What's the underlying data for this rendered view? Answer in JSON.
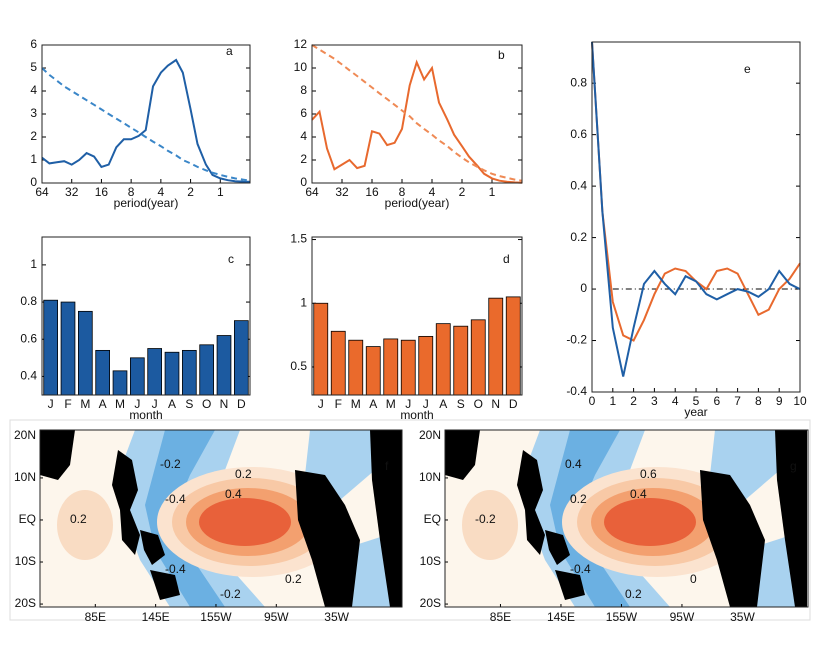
{
  "chart_data": [
    {
      "type": "line",
      "label": "a",
      "xlabel": "period(year)",
      "log_x": true,
      "x": [
        64,
        53.8,
        45.3,
        38.1,
        32,
        26.9,
        22.6,
        19,
        16,
        13.5,
        11.3,
        9.5,
        8,
        6.7,
        5.7,
        4.8,
        4,
        3.4,
        2.8,
        2.4,
        2,
        1.7,
        1.4,
        1.2,
        1,
        0.84,
        0.71,
        0.59,
        0.5
      ],
      "xlim": [
        64,
        0.5
      ],
      "xticks": [
        64,
        32,
        16,
        8,
        4,
        2,
        1
      ],
      "ylim": [
        0,
        6
      ],
      "yticks": [
        0,
        1,
        2,
        3,
        4,
        5,
        6
      ],
      "series": [
        {
          "color": "#1f5fa6",
          "dash": false,
          "values": [
            1.1,
            0.85,
            0.9,
            0.95,
            0.8,
            1.0,
            1.3,
            1.15,
            0.7,
            0.8,
            1.55,
            1.9,
            1.9,
            2.05,
            2.3,
            4.2,
            4.8,
            5.1,
            5.35,
            4.8,
            3.2,
            1.7,
            0.8,
            0.35,
            0.2,
            0.12,
            0.08,
            0.06,
            0.05
          ]
        },
        {
          "color": "#3a86c8",
          "dash": true,
          "values": [
            5,
            4.7,
            4.45,
            4.2,
            4,
            3.8,
            3.6,
            3.4,
            3.2,
            3.0,
            2.8,
            2.6,
            2.4,
            2.2,
            2.0,
            1.8,
            1.6,
            1.4,
            1.2,
            1.0,
            0.85,
            0.7,
            0.55,
            0.45,
            0.35,
            0.27,
            0.2,
            0.15,
            0.1
          ]
        }
      ]
    },
    {
      "type": "line",
      "label": "b",
      "xlabel": "period(year)",
      "log_x": true,
      "x": [
        64,
        53.8,
        45.3,
        38.1,
        32,
        26.9,
        22.6,
        19,
        16,
        13.5,
        11.3,
        9.5,
        8,
        6.7,
        5.7,
        4.8,
        4,
        3.4,
        2.8,
        2.4,
        2,
        1.7,
        1.4,
        1.2,
        1,
        0.84,
        0.71,
        0.59,
        0.5
      ],
      "xlim": [
        64,
        0.5
      ],
      "xticks": [
        64,
        32,
        16,
        8,
        4,
        2,
        1
      ],
      "ylim": [
        0,
        12
      ],
      "yticks": [
        0,
        2,
        4,
        6,
        8,
        10,
        12
      ],
      "series": [
        {
          "color": "#e8692e",
          "dash": false,
          "values": [
            5.5,
            6.2,
            3,
            1.2,
            1.6,
            2.0,
            1.3,
            1.5,
            4.5,
            4.3,
            3.3,
            3.5,
            4.7,
            8.5,
            10.5,
            9,
            10,
            7,
            5.5,
            4.2,
            3.2,
            2.3,
            1.5,
            0.8,
            0.4,
            0.2,
            0.1,
            0.05,
            0.03
          ]
        },
        {
          "color": "#ef8a55",
          "dash": true,
          "values": [
            12,
            11.6,
            11.2,
            10.8,
            10.3,
            9.8,
            9.3,
            8.8,
            8.3,
            7.8,
            7.3,
            6.8,
            6.3,
            5.8,
            5.2,
            4.7,
            4.2,
            3.7,
            3.2,
            2.7,
            2.2,
            1.8,
            1.4,
            1.1,
            0.8,
            0.6,
            0.45,
            0.3,
            0.2
          ]
        }
      ]
    },
    {
      "type": "bar",
      "label": "c",
      "xlabel": "month",
      "color": "#1c5aa0",
      "categories": [
        "J",
        "F",
        "M",
        "A",
        "M",
        "J",
        "J",
        "A",
        "S",
        "O",
        "N",
        "D"
      ],
      "values": [
        0.81,
        0.8,
        0.75,
        0.54,
        0.43,
        0.5,
        0.55,
        0.53,
        0.54,
        0.57,
        0.62,
        0.7
      ],
      "ylim": [
        0.3,
        1.15
      ],
      "yticks": [
        0.4,
        0.6,
        0.8,
        1
      ]
    },
    {
      "type": "bar",
      "label": "d",
      "xlabel": "month",
      "color": "#ea6a2c",
      "categories": [
        "J",
        "F",
        "M",
        "A",
        "M",
        "J",
        "J",
        "A",
        "S",
        "O",
        "N",
        "D"
      ],
      "values": [
        1.0,
        0.78,
        0.71,
        0.66,
        0.72,
        0.71,
        0.74,
        0.84,
        0.82,
        0.87,
        1.04,
        1.05
      ],
      "ylim": [
        0.28,
        1.52
      ],
      "yticks": [
        0.5,
        1,
        1.5
      ]
    },
    {
      "type": "line",
      "label": "e",
      "xlabel": "year",
      "log_x": false,
      "hline": 0,
      "x": [
        0,
        0.5,
        1,
        1.5,
        2,
        2.5,
        3,
        3.5,
        4,
        4.5,
        5,
        5.5,
        6,
        6.5,
        7,
        7.5,
        8,
        8.5,
        9,
        9.5,
        10
      ],
      "xlim": [
        0,
        10
      ],
      "xticks": [
        0,
        1,
        2,
        3,
        4,
        5,
        6,
        7,
        8,
        9,
        10
      ],
      "ylim": [
        -0.4,
        0.96
      ],
      "yticks": [
        -0.4,
        -0.2,
        0,
        0.2,
        0.4,
        0.6,
        0.8
      ],
      "series": [
        {
          "color": "#e8692e",
          "dash": false,
          "values": [
            0.96,
            0.3,
            -0.05,
            -0.18,
            -0.2,
            -0.12,
            -0.02,
            0.06,
            0.08,
            0.07,
            0.03,
            0.0,
            0.07,
            0.08,
            0.06,
            -0.02,
            -0.1,
            -0.08,
            0.0,
            0.04,
            0.1
          ]
        },
        {
          "color": "#1f5fa6",
          "dash": false,
          "values": [
            0.96,
            0.3,
            -0.15,
            -0.34,
            -0.15,
            0.02,
            0.07,
            0.02,
            -0.02,
            0.05,
            0.03,
            -0.02,
            -0.04,
            -0.02,
            0.0,
            -0.01,
            -0.03,
            0.0,
            0.07,
            0.02,
            0.0
          ]
        }
      ]
    },
    {
      "type": "map",
      "label": "f",
      "xlim": [
        30,
        390
      ],
      "xticks": [
        {
          "value": 85,
          "label": "85E"
        },
        {
          "value": 145,
          "label": "145E"
        },
        {
          "value": 205,
          "label": "155W"
        },
        {
          "value": 265,
          "label": "95W"
        },
        {
          "value": 325,
          "label": "35W"
        }
      ],
      "ylim": [
        -20.7,
        21.4
      ],
      "yticks": [
        {
          "value": 20,
          "label": "20N"
        },
        {
          "value": 10,
          "label": "10N"
        },
        {
          "value": 0,
          "label": "EQ"
        },
        {
          "value": -10,
          "label": "10S"
        },
        {
          "value": -20,
          "label": "20S"
        }
      ],
      "contour_labels": [
        "-0.2",
        "-0.4",
        "0.2",
        "0.4",
        "0.2",
        "-0.4",
        "-0.2",
        "0.2"
      ]
    },
    {
      "type": "map",
      "label": "g",
      "xlim": [
        30,
        390
      ],
      "xticks": [
        {
          "value": 85,
          "label": "85E"
        },
        {
          "value": 145,
          "label": "145E"
        },
        {
          "value": 205,
          "label": "155W"
        },
        {
          "value": 265,
          "label": "95W"
        },
        {
          "value": 325,
          "label": "35W"
        }
      ],
      "ylim": [
        -20.7,
        21.4
      ],
      "yticks": [
        {
          "value": 20,
          "label": "20N"
        },
        {
          "value": 10,
          "label": "10N"
        },
        {
          "value": 0,
          "label": "EQ"
        },
        {
          "value": -10,
          "label": "10S"
        },
        {
          "value": -20,
          "label": "20S"
        }
      ],
      "contour_labels": [
        "0.4",
        "0.2",
        "-0.2",
        "0.4",
        "0.6",
        "-0.4",
        "0.2",
        "0"
      ]
    }
  ]
}
